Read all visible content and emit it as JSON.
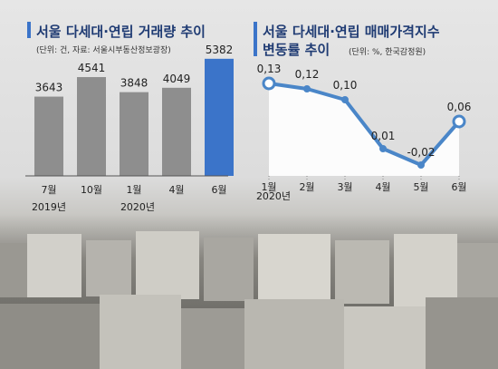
{
  "chart_data": [
    {
      "type": "bar",
      "title": "서울 다세대·연립 거래량 추이",
      "source": "(단위: 건, 자료: 서울시부동산정보광장)",
      "categories": [
        "7월",
        "10월",
        "1월",
        "4월",
        "6월"
      ],
      "year_labels": [
        "2019년",
        "2020년"
      ],
      "values": [
        3643,
        4541,
        3848,
        4049,
        5382
      ],
      "value_labels": [
        "3643",
        "4541",
        "3848",
        "4049",
        "5382"
      ],
      "ylim": [
        0,
        6000
      ],
      "bar_color": "#8e8e8e",
      "highlight_color": "#3b74c9",
      "highlight_index": 4
    },
    {
      "type": "line",
      "title_lines": [
        "서울 다세대·연립 매매가격지수",
        "변동률 추이"
      ],
      "source": "(단위: %, 한국감정원)",
      "categories": [
        "1월",
        "2월",
        "3월",
        "4월",
        "5월",
        "6월"
      ],
      "year_label": "2020년",
      "values": [
        0.13,
        0.12,
        0.1,
        0.01,
        -0.02,
        0.06
      ],
      "value_labels": [
        "0,13",
        "0,12",
        "0,10",
        "0,01",
        "-0,02",
        "0,06"
      ],
      "ylim": [
        -0.04,
        0.15
      ],
      "line_color": "#4a86c8",
      "fill_color": "#ffffff"
    }
  ]
}
